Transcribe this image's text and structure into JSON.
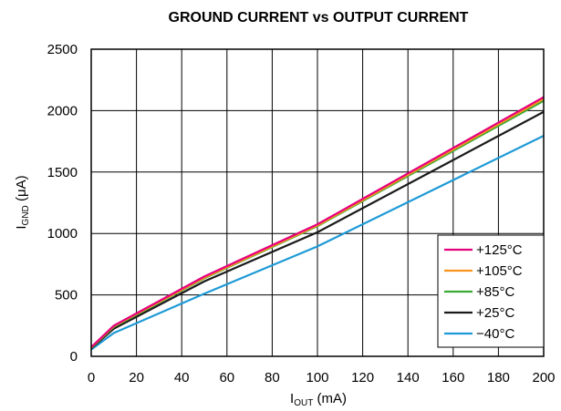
{
  "chart_data": {
    "type": "line",
    "title": "GROUND CURRENT vs OUTPUT CURRENT",
    "xlabel": {
      "main": "I",
      "sub": "OUT",
      "unit": " (mA)"
    },
    "ylabel": {
      "main": "I",
      "sub": "GND",
      "unit": " (μA)"
    },
    "xlim": [
      0,
      200
    ],
    "ylim": [
      0,
      2500
    ],
    "xticks": [
      "0",
      "20",
      "40",
      "60",
      "80",
      "100",
      "120",
      "140",
      "160",
      "180",
      "200"
    ],
    "yticks": [
      "0",
      "500",
      "1000",
      "1500",
      "2000",
      "2500"
    ],
    "grid": true,
    "legend_position": "bottom-right",
    "series": [
      {
        "name": "+125°C",
        "color": "#e6007e",
        "x": [
          0,
          10,
          50,
          100,
          200
        ],
        "y": [
          75,
          250,
          650,
          1075,
          2110
        ]
      },
      {
        "name": "+105°C",
        "color": "#f7941d",
        "x": [
          0,
          10,
          50,
          100,
          200
        ],
        "y": [
          72,
          245,
          640,
          1065,
          2095
        ]
      },
      {
        "name": "+85°C",
        "color": "#3aaa35",
        "x": [
          0,
          10,
          50,
          100,
          200
        ],
        "y": [
          70,
          240,
          635,
          1060,
          2080
        ]
      },
      {
        "name": "+25°C",
        "color": "#1a1a1a",
        "x": [
          0,
          10,
          50,
          100,
          200
        ],
        "y": [
          65,
          225,
          610,
          1010,
          1990
        ]
      },
      {
        "name": "−40°C",
        "color": "#1e9ad6",
        "x": [
          0,
          10,
          50,
          100,
          200
        ],
        "y": [
          55,
          190,
          510,
          895,
          1795
        ]
      }
    ]
  }
}
